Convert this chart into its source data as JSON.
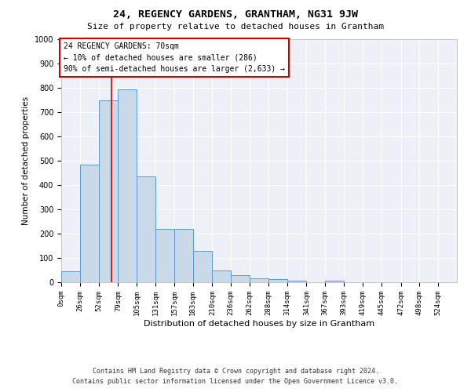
{
  "title": "24, REGENCY GARDENS, GRANTHAM, NG31 9JW",
  "subtitle": "Size of property relative to detached houses in Grantham",
  "xlabel": "Distribution of detached houses by size in Grantham",
  "ylabel": "Number of detached properties",
  "bar_heights": [
    45,
    485,
    750,
    795,
    435,
    220,
    220,
    130,
    48,
    28,
    15,
    12,
    7,
    1,
    7,
    1,
    1,
    1,
    0,
    0,
    0
  ],
  "bin_edges": [
    0,
    26,
    52,
    79,
    105,
    131,
    157,
    183,
    210,
    236,
    262,
    288,
    314,
    341,
    367,
    393,
    419,
    445,
    472,
    498,
    524,
    550
  ],
  "xtick_labels": [
    "0sqm",
    "26sqm",
    "52sqm",
    "79sqm",
    "105sqm",
    "131sqm",
    "157sqm",
    "183sqm",
    "210sqm",
    "236sqm",
    "262sqm",
    "288sqm",
    "314sqm",
    "341sqm",
    "367sqm",
    "393sqm",
    "419sqm",
    "445sqm",
    "472sqm",
    "498sqm",
    "524sqm"
  ],
  "yticks": [
    0,
    100,
    200,
    300,
    400,
    500,
    600,
    700,
    800,
    900,
    1000
  ],
  "bar_color": "#c9d9e8",
  "bar_edge_color": "#5b9bd5",
  "bar_edge_width": 0.7,
  "vline_x": 70,
  "vline_color": "#cc0000",
  "ylim": [
    0,
    1000
  ],
  "xlim": [
    0,
    550
  ],
  "annotation_title": "24 REGENCY GARDENS: 70sqm",
  "annotation_line1": "← 10% of detached houses are smaller (286)",
  "annotation_line2": "90% of semi-detached houses are larger (2,633) →",
  "annotation_box_edgecolor": "#cc0000",
  "background_color": "#edf1f7",
  "grid_color": "#ffffff",
  "footer_line1": "Contains HM Land Registry data © Crown copyright and database right 2024.",
  "footer_line2": "Contains public sector information licensed under the Open Government Licence v3.0."
}
